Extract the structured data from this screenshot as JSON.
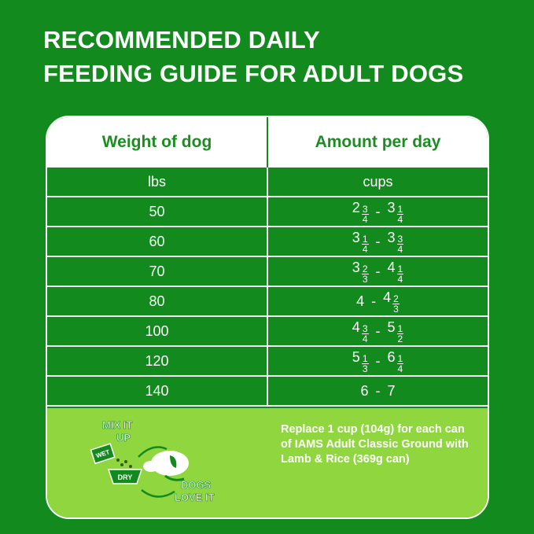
{
  "title": [
    "RECOMMENDED DAILY",
    "FEEDING GUIDE FOR ADULT DOGS"
  ],
  "table": {
    "headers": [
      "Weight of dog",
      "Amount per day"
    ],
    "units": [
      "lbs",
      "cups"
    ],
    "separator": "-",
    "rows": [
      {
        "weight": 50,
        "from": {
          "whole": "2",
          "num": "3",
          "den": "4"
        },
        "to": {
          "whole": "3",
          "num": "1",
          "den": "4"
        }
      },
      {
        "weight": 60,
        "from": {
          "whole": "3",
          "num": "1",
          "den": "4"
        },
        "to": {
          "whole": "3",
          "num": "3",
          "den": "4"
        }
      },
      {
        "weight": 70,
        "from": {
          "whole": "3",
          "num": "2",
          "den": "3"
        },
        "to": {
          "whole": "4",
          "num": "1",
          "den": "4"
        }
      },
      {
        "weight": 80,
        "from": {
          "whole": "4"
        },
        "to": {
          "whole": "4",
          "num": "2",
          "den": "3"
        }
      },
      {
        "weight": 100,
        "from": {
          "whole": "4",
          "num": "3",
          "den": "4"
        },
        "to": {
          "whole": "5",
          "num": "1",
          "den": "2"
        }
      },
      {
        "weight": 120,
        "from": {
          "whole": "5",
          "num": "1",
          "den": "3"
        },
        "to": {
          "whole": "6",
          "num": "1",
          "den": "4"
        }
      },
      {
        "weight": 140,
        "from": {
          "whole": "6"
        },
        "to": {
          "whole": "7"
        }
      }
    ]
  },
  "footer": {
    "badge": {
      "mix": [
        "MIX IT",
        "UP"
      ],
      "wet": "WET",
      "dry": "DRY",
      "love": [
        "DOGS",
        "LOVE IT"
      ]
    },
    "note": "Replace 1 cup (104g) for each can of IAMS Adult Classic Ground with Lamb & Rice (369g can)"
  }
}
